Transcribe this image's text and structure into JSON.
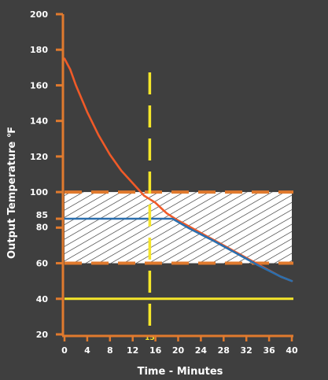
{
  "chart_data": {
    "type": "line",
    "xlabel": "Time - Minutes",
    "ylabel": "Output Temperature ℉",
    "xlim": [
      0,
      40
    ],
    "ylim": [
      20,
      200
    ],
    "x_ticks": [
      0,
      4,
      8,
      12,
      16,
      20,
      24,
      28,
      32,
      36,
      40
    ],
    "y_ticks": [
      20,
      40,
      60,
      80,
      85,
      100,
      120,
      140,
      160,
      180,
      200
    ],
    "hatched_band": [
      60,
      100
    ],
    "threshold_line_y": 40,
    "vertical_marker": {
      "x": 15,
      "label": "15"
    },
    "series": [
      {
        "color": "#f05a28",
        "x": [
          0,
          1,
          2,
          4,
          6,
          8,
          10,
          12,
          14,
          15,
          16,
          17,
          18,
          19,
          20,
          22,
          24,
          26,
          28,
          30,
          32,
          34,
          36,
          38,
          40
        ],
        "y": [
          175,
          169,
          160,
          145,
          132,
          121,
          112,
          105,
          98,
          96,
          94,
          91,
          88,
          86,
          84,
          80.5,
          77,
          73.5,
          70,
          66.5,
          63,
          59.5,
          56,
          52.5,
          50
        ]
      },
      {
        "color": "#2b6fae",
        "x": [
          0,
          19,
          22,
          26,
          30,
          34,
          38,
          40
        ],
        "y": [
          85,
          85,
          79.5,
          73,
          66,
          59,
          52.5,
          50
        ]
      }
    ],
    "colors": {
      "axis": "#e07a2e",
      "band_border": "#e07a2e",
      "band_fill": "#ffffff",
      "hatch": "#222222",
      "marker": "#f5e62a",
      "threshold": "#f5e62a",
      "text": "#ffffff"
    }
  }
}
